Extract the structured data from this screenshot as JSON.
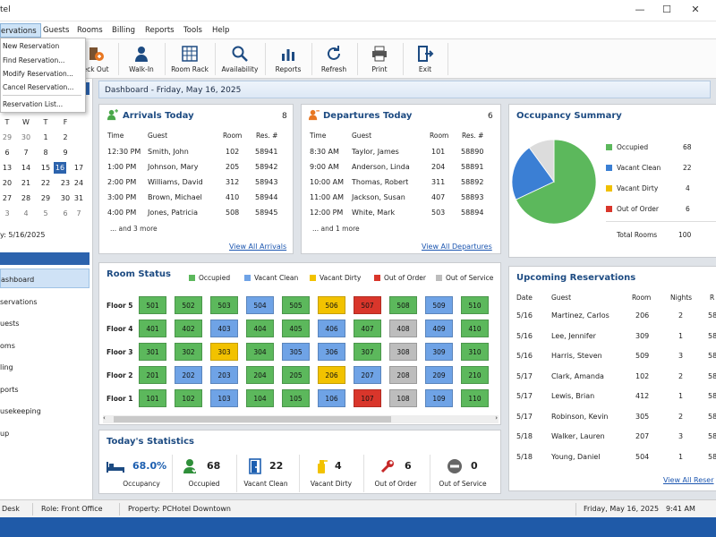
{
  "window": {
    "title": "tel"
  },
  "menu": [
    "ervations",
    "Guests",
    "Rooms",
    "Billing",
    "Reports",
    "Tools",
    "Help"
  ],
  "toolbar": [
    {
      "label": "eck Out",
      "icon": "check-out-icon"
    },
    {
      "label": "Walk-In",
      "icon": "walk-in-icon"
    },
    {
      "label": "Room Rack",
      "icon": "room-rack-icon"
    },
    {
      "label": "Availability",
      "icon": "availability-icon"
    },
    {
      "label": "Reports",
      "icon": "reports-icon"
    },
    {
      "label": "Refresh",
      "icon": "refresh-icon"
    },
    {
      "label": "Print",
      "icon": "print-icon"
    },
    {
      "label": "Exit",
      "icon": "exit-icon"
    }
  ],
  "dropdown": [
    "New Reservation",
    "Find Reservation...",
    "Modify Reservation...",
    "Cancel Reservation...",
    "Reservation List..."
  ],
  "calendar": {
    "weekdays": [
      "T",
      "W",
      "T",
      "F"
    ],
    "rows": [
      [
        "29",
        "30",
        "1",
        "2"
      ],
      [
        "6",
        "7",
        "8",
        "9"
      ],
      [
        "13",
        "14",
        "15",
        "16",
        "17"
      ],
      [
        "20",
        "21",
        "22",
        "23",
        "24"
      ],
      [
        "27",
        "28",
        "29",
        "30",
        "31"
      ],
      [
        "3",
        "4",
        "5",
        "6",
        "7"
      ]
    ],
    "today_label": "y: 5/16/2025"
  },
  "nav": [
    "ashboard",
    "servations",
    "uests",
    "oms",
    "ling",
    "ports",
    "usekeeping",
    "up"
  ],
  "dashboard": {
    "header": "Dashboard - Friday, May 16, 2025"
  },
  "arrivals": {
    "title": "Arrivals Today",
    "count": "8",
    "headers": [
      "Time",
      "Guest",
      "Room",
      "Res. #"
    ],
    "rows": [
      [
        "12:30 PM",
        "Smith, John",
        "102",
        "58941"
      ],
      [
        "1:00 PM",
        "Johnson, Mary",
        "205",
        "58942"
      ],
      [
        "2:00 PM",
        "Williams, David",
        "312",
        "58943"
      ],
      [
        "3:00 PM",
        "Brown, Michael",
        "410",
        "58944"
      ],
      [
        "4:00 PM",
        "Jones, Patricia",
        "508",
        "58945"
      ]
    ],
    "more": "... and 3 more",
    "link": "View All Arrivals"
  },
  "departures": {
    "title": "Departures Today",
    "count": "6",
    "headers": [
      "Time",
      "Guest",
      "Room",
      "Res. #"
    ],
    "rows": [
      [
        "8:30 AM",
        "Taylor, James",
        "101",
        "58890"
      ],
      [
        "9:00 AM",
        "Anderson, Linda",
        "204",
        "58891"
      ],
      [
        "10:00 AM",
        "Thomas, Robert",
        "311",
        "58892"
      ],
      [
        "11:00 AM",
        "Jackson, Susan",
        "407",
        "58893"
      ],
      [
        "12:00 PM",
        "White, Mark",
        "503",
        "58894"
      ]
    ],
    "more": "... and 1 more",
    "link": "View All Departures"
  },
  "occupancy": {
    "title": "Occupancy Summary",
    "items": [
      {
        "label": "Occupied",
        "value": "68",
        "color": "#5cb85c"
      },
      {
        "label": "Vacant Clean",
        "value": "22",
        "color": "#3b7fd4"
      },
      {
        "label": "Vacant Dirty",
        "value": "4",
        "color": "#f0c000"
      },
      {
        "label": "Out of Order",
        "value": "6",
        "color": "#d9362b"
      }
    ],
    "total_label": "Total Rooms",
    "total_value": "100",
    "slices": [
      {
        "value": 68,
        "color": "#5cb85c"
      },
      {
        "value": 22,
        "color": "#3b7fd4"
      },
      {
        "value": 10,
        "color": "#dcdcdc"
      }
    ]
  },
  "room_status": {
    "title": "Room Status",
    "legend": [
      {
        "label": "Occupied",
        "color": "#5cb85c"
      },
      {
        "label": "Vacant Clean",
        "color": "#6fa3e6"
      },
      {
        "label": "Vacant Dirty",
        "color": "#f2c200"
      },
      {
        "label": "Out of Order",
        "color": "#d9362b"
      },
      {
        "label": "Out of Service",
        "color": "#bdbdbd"
      }
    ],
    "floors": [
      {
        "label": "Floor 5",
        "rooms": [
          [
            "501",
            "o"
          ],
          [
            "502",
            "o"
          ],
          [
            "503",
            "o"
          ],
          [
            "504",
            "c"
          ],
          [
            "505",
            "o"
          ],
          [
            "506",
            "d"
          ],
          [
            "507",
            "x"
          ],
          [
            "508",
            "o"
          ],
          [
            "509",
            "c"
          ],
          [
            "510",
            "o"
          ]
        ]
      },
      {
        "label": "Floor 4",
        "rooms": [
          [
            "401",
            "o"
          ],
          [
            "402",
            "o"
          ],
          [
            "403",
            "c"
          ],
          [
            "404",
            "o"
          ],
          [
            "405",
            "o"
          ],
          [
            "406",
            "c"
          ],
          [
            "407",
            "o"
          ],
          [
            "408",
            "s"
          ],
          [
            "409",
            "c"
          ],
          [
            "410",
            "o"
          ]
        ]
      },
      {
        "label": "Floor 3",
        "rooms": [
          [
            "301",
            "o"
          ],
          [
            "302",
            "o"
          ],
          [
            "303",
            "d"
          ],
          [
            "304",
            "o"
          ],
          [
            "305",
            "c"
          ],
          [
            "306",
            "c"
          ],
          [
            "307",
            "o"
          ],
          [
            "308",
            "s"
          ],
          [
            "309",
            "c"
          ],
          [
            "310",
            "o"
          ]
        ]
      },
      {
        "label": "Floor 2",
        "rooms": [
          [
            "201",
            "o"
          ],
          [
            "202",
            "c"
          ],
          [
            "203",
            "c"
          ],
          [
            "204",
            "o"
          ],
          [
            "205",
            "o"
          ],
          [
            "206",
            "d"
          ],
          [
            "207",
            "c"
          ],
          [
            "208",
            "s"
          ],
          [
            "209",
            "c"
          ],
          [
            "210",
            "o"
          ]
        ]
      },
      {
        "label": "Floor 1",
        "rooms": [
          [
            "101",
            "o"
          ],
          [
            "102",
            "o"
          ],
          [
            "103",
            "c"
          ],
          [
            "104",
            "o"
          ],
          [
            "105",
            "o"
          ],
          [
            "106",
            "c"
          ],
          [
            "107",
            "x"
          ],
          [
            "108",
            "s"
          ],
          [
            "109",
            "c"
          ],
          [
            "110",
            "o"
          ]
        ]
      }
    ]
  },
  "upcoming": {
    "title": "Upcoming Reservations",
    "headers": [
      "Date",
      "Guest",
      "Room",
      "Nights",
      "R"
    ],
    "rows": [
      [
        "5/16",
        "Martinez, Carlos",
        "206",
        "2",
        "58"
      ],
      [
        "5/16",
        "Lee, Jennifer",
        "309",
        "1",
        "58"
      ],
      [
        "5/16",
        "Harris, Steven",
        "509",
        "3",
        "58"
      ],
      [
        "5/17",
        "Clark, Amanda",
        "102",
        "2",
        "58"
      ],
      [
        "5/17",
        "Lewis, Brian",
        "412",
        "1",
        "58"
      ],
      [
        "5/17",
        "Robinson, Kevin",
        "305",
        "2",
        "58"
      ],
      [
        "5/18",
        "Walker, Lauren",
        "207",
        "3",
        "58"
      ],
      [
        "5/18",
        "Young, Daniel",
        "504",
        "1",
        "58"
      ]
    ],
    "link": "View All Reser"
  },
  "stats": {
    "title": "Today's Statistics",
    "items": [
      {
        "value": "68.0%",
        "label": "Occupancy",
        "icon": "bed-icon"
      },
      {
        "value": "68",
        "label": "Occupied",
        "icon": "occupied-person-icon"
      },
      {
        "value": "22",
        "label": "Vacant Clean",
        "icon": "door-icon"
      },
      {
        "value": "4",
        "label": "Vacant Dirty",
        "icon": "cleaning-spray-icon"
      },
      {
        "value": "6",
        "label": "Out of Order",
        "icon": "wrench-icon"
      },
      {
        "value": "0",
        "label": "Out of Service",
        "icon": "no-entry-icon"
      }
    ]
  },
  "status": {
    "desk": "Desk",
    "role": "Role:  Front Office",
    "property": "Property:  PCHotel  Downtown",
    "date": "Friday, May 16, 2025",
    "time": "9:41 AM"
  }
}
